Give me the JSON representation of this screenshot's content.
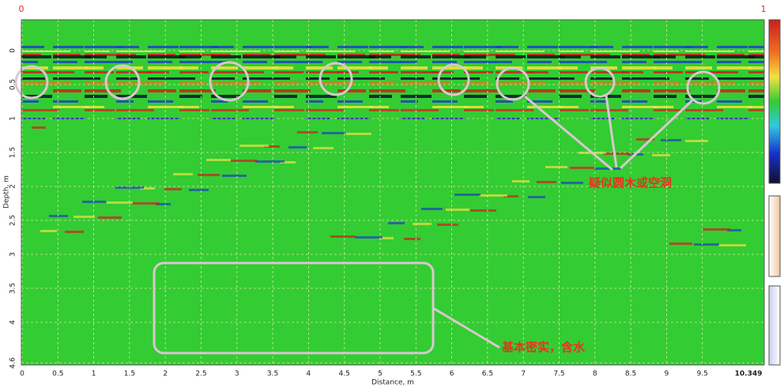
{
  "figure": {
    "scale_min": "0",
    "scale_max": "1",
    "x_label": "Distance, m",
    "y_label": "Depth, m",
    "x_ticks": [
      "0",
      "0.5",
      "1",
      "1.5",
      "2",
      "2.5",
      "3",
      "3.5",
      "4",
      "4.5",
      "5",
      "5.5",
      "6",
      "6.5",
      "7",
      "7.5",
      "8",
      "8.5",
      "9",
      "9.5"
    ],
    "x_end": "10.349",
    "y_ticks": [
      "0",
      "0.5",
      "1",
      "1.5",
      "2",
      "2.5",
      "3",
      "3.5",
      "4",
      "4.6"
    ],
    "annotations": [
      "疑似圆木或空洞",
      "基本密实，含水"
    ]
  }
}
